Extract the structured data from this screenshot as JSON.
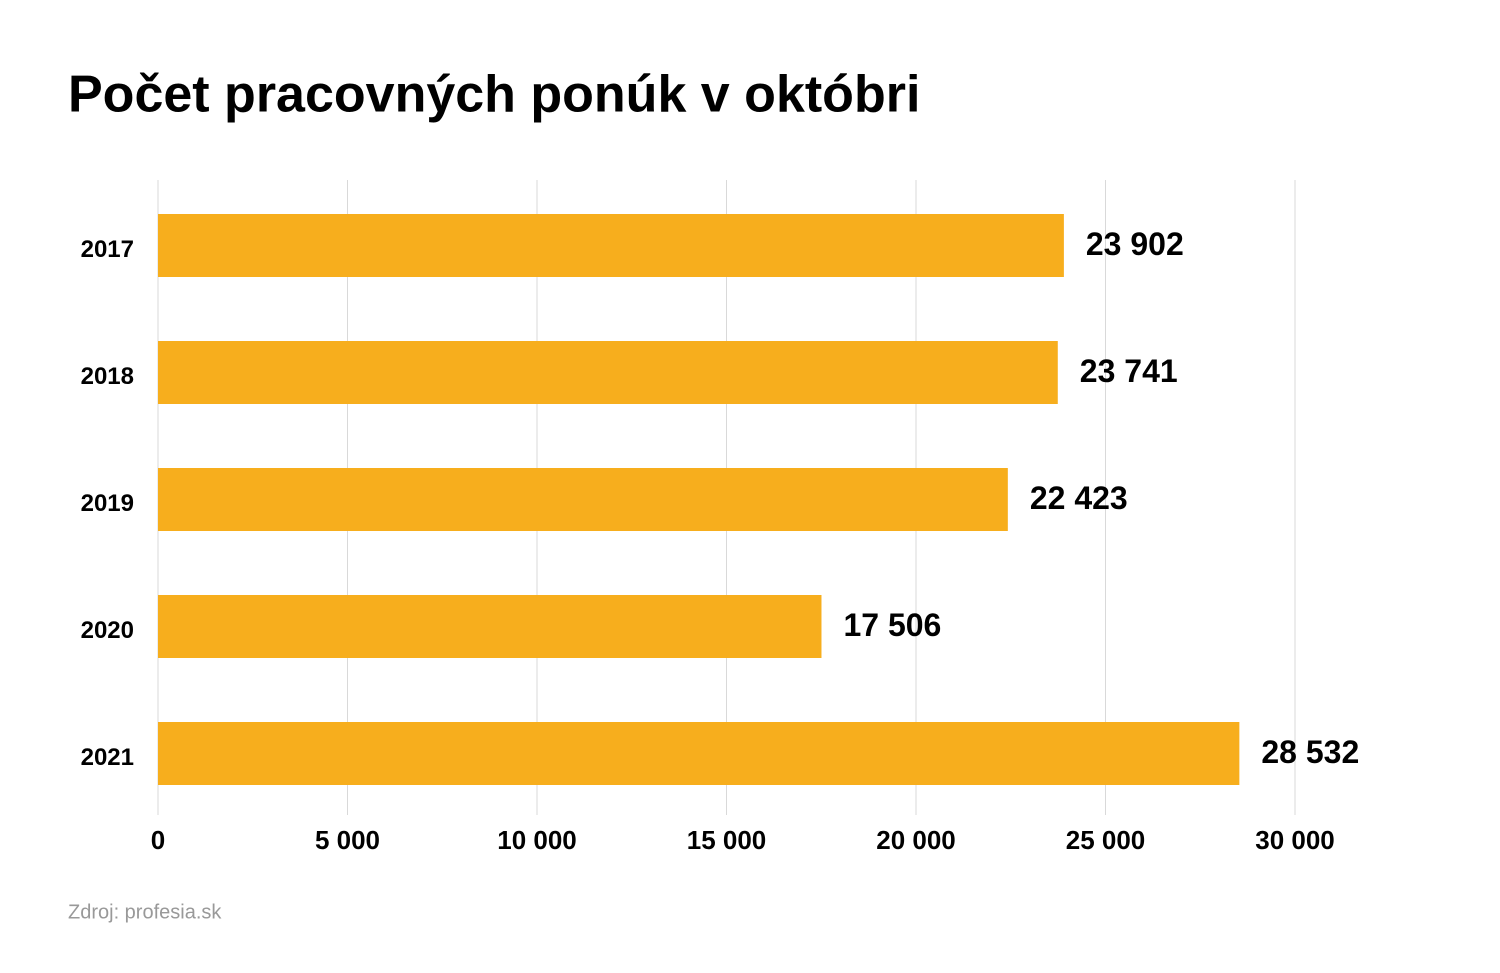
{
  "chart_data": {
    "type": "bar",
    "orientation": "horizontal",
    "title": "Počet pracovných ponúk v októbri",
    "categories": [
      "2017",
      "2018",
      "2019",
      "2020",
      "2021"
    ],
    "values": [
      23902,
      23741,
      22423,
      17506,
      28532
    ],
    "value_labels": [
      "23 902",
      "23 741",
      "22 423",
      "17 506",
      "28 532"
    ],
    "color": "#f7ae1d",
    "xlim": [
      0,
      30000
    ],
    "xticks": [
      0,
      {
        "value": 5000,
        "label": "5 000"
      },
      {
        "value": 10000,
        "label": "10 000"
      },
      {
        "value": 15000,
        "label": "15 000"
      },
      {
        "value": 20000,
        "label": "20 000"
      },
      {
        "value": 25000,
        "label": "25 000"
      },
      {
        "value": 30000,
        "label": "30 000"
      }
    ],
    "grid": true,
    "source": "Zdroj: profesia.sk"
  }
}
